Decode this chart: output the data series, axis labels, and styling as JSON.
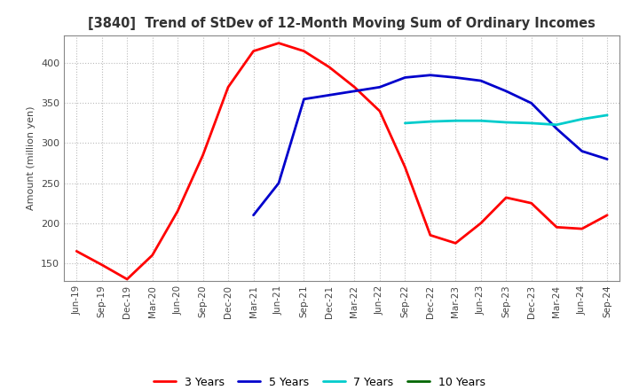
{
  "title": "[3840]  Trend of StDev of 12-Month Moving Sum of Ordinary Incomes",
  "ylabel": "Amount (million yen)",
  "ylim": [
    128,
    435
  ],
  "yticks": [
    150,
    200,
    250,
    300,
    350,
    400
  ],
  "background_color": "#ffffff",
  "grid_color": "#bbbbbb",
  "series": {
    "3 Years": {
      "color": "#ff0000",
      "data": [
        165,
        148,
        130,
        160,
        215,
        285,
        370,
        415,
        425,
        415,
        395,
        370,
        340,
        270,
        185,
        175,
        200,
        232,
        225,
        195,
        193,
        210
      ]
    },
    "5 Years": {
      "color": "#0000cc",
      "data": [
        null,
        null,
        null,
        null,
        null,
        null,
        null,
        210,
        250,
        355,
        360,
        365,
        370,
        382,
        385,
        382,
        378,
        365,
        350,
        318,
        290,
        280
      ]
    },
    "7 Years": {
      "color": "#00cccc",
      "data": [
        null,
        null,
        null,
        null,
        null,
        null,
        null,
        null,
        null,
        null,
        null,
        null,
        null,
        325,
        327,
        328,
        328,
        326,
        325,
        323,
        330,
        335
      ]
    },
    "10 Years": {
      "color": "#006600",
      "data": [
        null,
        null,
        null,
        null,
        null,
        null,
        null,
        null,
        null,
        null,
        null,
        null,
        null,
        null,
        null,
        null,
        null,
        null,
        null,
        null,
        null,
        null
      ]
    }
  },
  "xtick_labels": [
    "Jun-19",
    "Sep-19",
    "Dec-19",
    "Mar-20",
    "Jun-20",
    "Sep-20",
    "Dec-20",
    "Mar-21",
    "Jun-21",
    "Sep-21",
    "Dec-21",
    "Mar-22",
    "Jun-22",
    "Sep-22",
    "Dec-22",
    "Mar-23",
    "Jun-23",
    "Sep-23",
    "Dec-23",
    "Mar-24",
    "Jun-24",
    "Sep-24"
  ]
}
